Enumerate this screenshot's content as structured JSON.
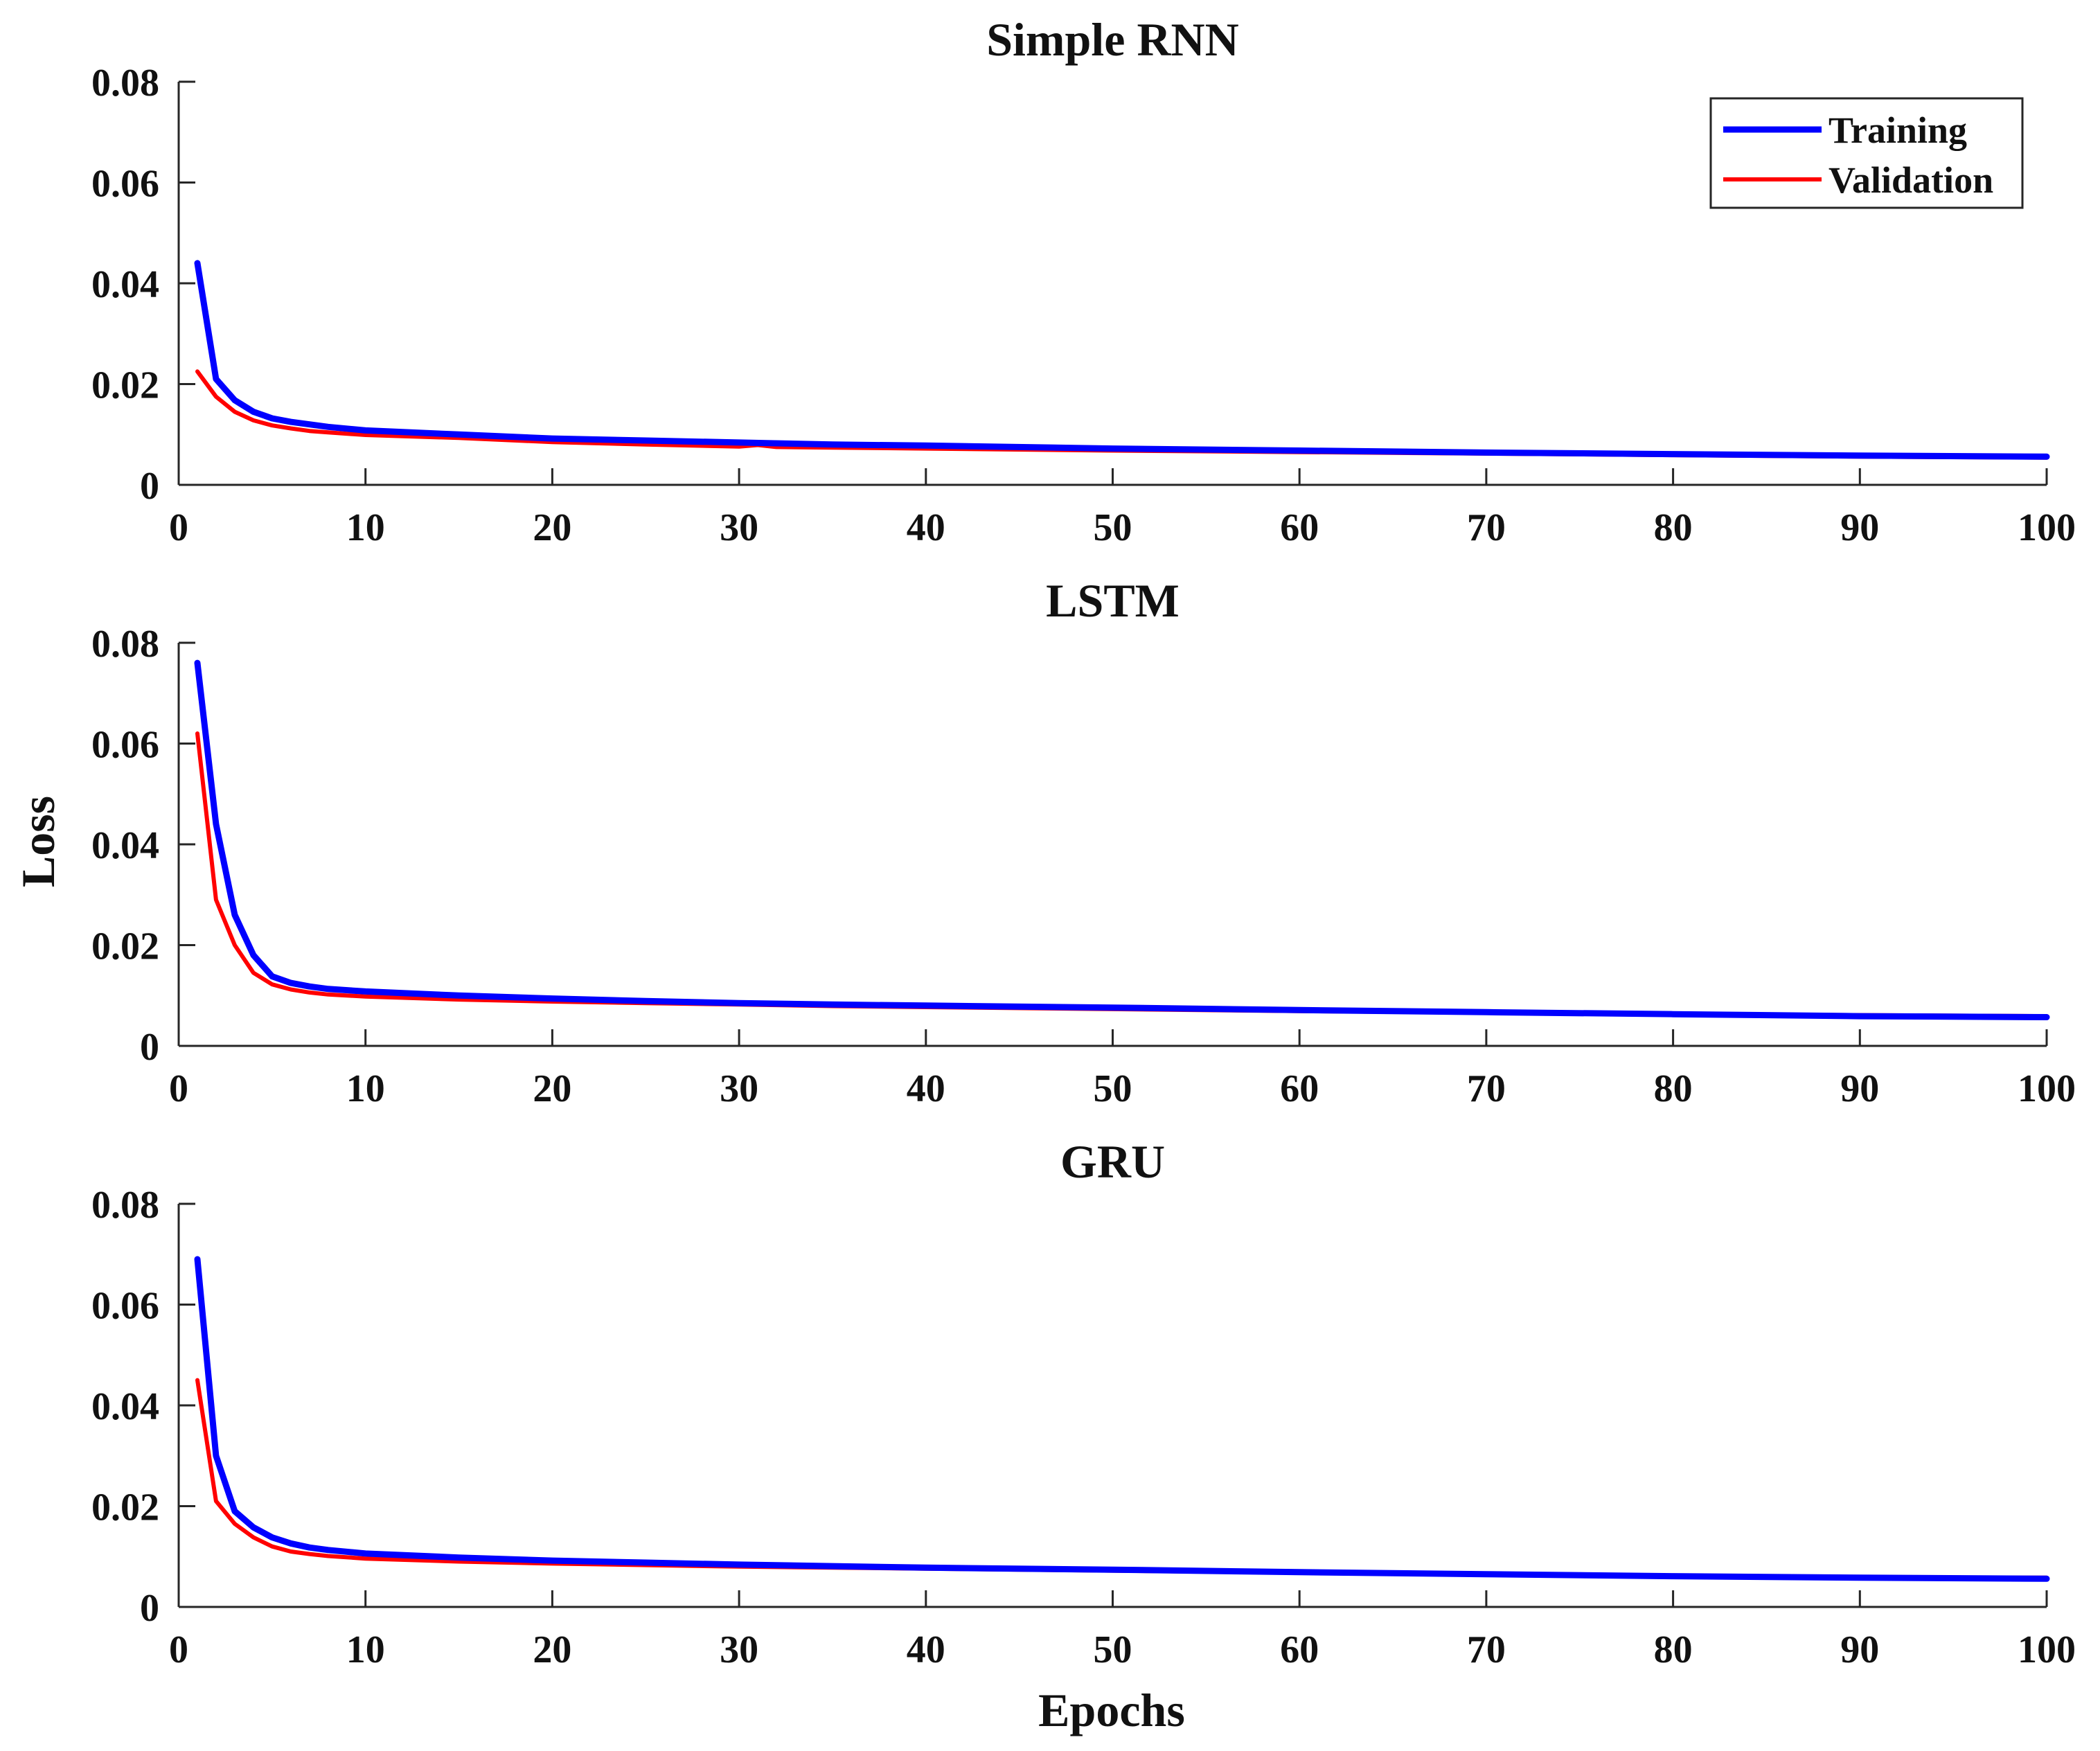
{
  "chart_data": {
    "type": "line",
    "ylabel": "Loss",
    "xlabel": "Epochs",
    "xlim": [
      0,
      100
    ],
    "ylim": [
      0,
      0.08
    ],
    "xticks": [
      "0",
      "10",
      "20",
      "30",
      "40",
      "50",
      "60",
      "70",
      "80",
      "90",
      "100"
    ],
    "yticks": [
      "0",
      "0.02",
      "0.04",
      "0.06",
      "0.08"
    ],
    "legend": {
      "location": "top-right",
      "entries": [
        {
          "name": "Training",
          "color": "#0000ff"
        },
        {
          "name": "Validation",
          "color": "#ff0000"
        }
      ]
    },
    "subplots": [
      {
        "title": "Simple RNN",
        "series": [
          {
            "name": "Training",
            "color": "#0000ff",
            "x": [
              1,
              2,
              3,
              4,
              5,
              6,
              7,
              8,
              10,
              15,
              20,
              25,
              30,
              35,
              40,
              50,
              60,
              70,
              80,
              90,
              100
            ],
            "y": [
              0.044,
              0.021,
              0.0168,
              0.0145,
              0.0132,
              0.0125,
              0.012,
              0.0115,
              0.0108,
              0.01,
              0.0092,
              0.0088,
              0.0084,
              0.008,
              0.0078,
              0.0072,
              0.0068,
              0.0064,
              0.0061,
              0.0058,
              0.0056
            ]
          },
          {
            "name": "Validation",
            "color": "#ff0000",
            "x": [
              1,
              2,
              3,
              4,
              5,
              6,
              7,
              8,
              10,
              15,
              20,
              25,
              30,
              31,
              32,
              35,
              40,
              50,
              60,
              70,
              80,
              90,
              100
            ],
            "y": [
              0.0225,
              0.0175,
              0.0145,
              0.0128,
              0.0118,
              0.0112,
              0.0107,
              0.0104,
              0.0099,
              0.0093,
              0.0085,
              0.008,
              0.0076,
              0.0079,
              0.0075,
              0.0074,
              0.0072,
              0.0068,
              0.0065,
              0.0062,
              0.0059,
              0.0056,
              0.0054
            ]
          }
        ]
      },
      {
        "title": "LSTM",
        "series": [
          {
            "name": "Training",
            "color": "#0000ff",
            "x": [
              1,
              2,
              3,
              4,
              5,
              6,
              7,
              8,
              10,
              15,
              20,
              25,
              30,
              35,
              40,
              50,
              60,
              70,
              80,
              90,
              100
            ],
            "y": [
              0.076,
              0.044,
              0.026,
              0.018,
              0.0138,
              0.0125,
              0.0118,
              0.0113,
              0.0108,
              0.01,
              0.0094,
              0.0089,
              0.0085,
              0.0082,
              0.008,
              0.0076,
              0.0071,
              0.0067,
              0.0063,
              0.0059,
              0.0057
            ]
          },
          {
            "name": "Validation",
            "color": "#ff0000",
            "x": [
              1,
              2,
              3,
              4,
              5,
              6,
              7,
              8,
              10,
              15,
              20,
              25,
              30,
              35,
              40,
              50,
              60,
              70,
              80,
              90,
              100
            ],
            "y": [
              0.062,
              0.029,
              0.02,
              0.0145,
              0.0122,
              0.0112,
              0.0106,
              0.0102,
              0.0098,
              0.0092,
              0.0088,
              0.0085,
              0.0082,
              0.0079,
              0.0077,
              0.0073,
              0.0069,
              0.0066,
              0.0063,
              0.0061,
              0.0059
            ]
          }
        ]
      },
      {
        "title": "GRU",
        "series": [
          {
            "name": "Training",
            "color": "#0000ff",
            "x": [
              1,
              2,
              3,
              4,
              5,
              6,
              7,
              8,
              10,
              15,
              20,
              25,
              30,
              35,
              40,
              50,
              60,
              70,
              80,
              90,
              100
            ],
            "y": [
              0.069,
              0.03,
              0.019,
              0.0158,
              0.0138,
              0.0126,
              0.0118,
              0.0113,
              0.0106,
              0.0098,
              0.0092,
              0.0088,
              0.0084,
              0.0081,
              0.0078,
              0.0074,
              0.0069,
              0.0065,
              0.0061,
              0.0058,
              0.0056
            ]
          },
          {
            "name": "Validation",
            "color": "#ff0000",
            "x": [
              1,
              2,
              3,
              4,
              5,
              6,
              7,
              8,
              10,
              15,
              20,
              25,
              30,
              35,
              40,
              50,
              60,
              70,
              80,
              90,
              100
            ],
            "y": [
              0.045,
              0.021,
              0.0165,
              0.0138,
              0.012,
              0.011,
              0.0105,
              0.0101,
              0.0096,
              0.009,
              0.0086,
              0.0083,
              0.008,
              0.0078,
              0.0076,
              0.0072,
              0.0068,
              0.0064,
              0.0061,
              0.0059,
              0.0058
            ]
          }
        ]
      }
    ]
  }
}
